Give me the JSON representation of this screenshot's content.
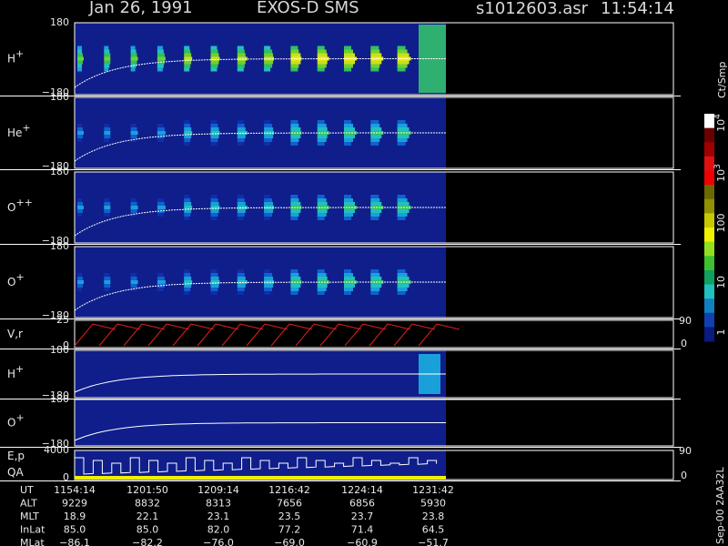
{
  "header": {
    "date": "Jan 26, 1991",
    "instrument": "EXOS-D SMS",
    "file": "s1012603.asr",
    "time": "11:54:14"
  },
  "panels": [
    {
      "label": "H",
      "sup": "+",
      "ticks": [
        "180",
        "−180"
      ]
    },
    {
      "label": "He",
      "sup": "+",
      "ticks": [
        "180",
        "−180"
      ]
    },
    {
      "label": "O",
      "sup": "++",
      "ticks": [
        "180",
        "−180"
      ]
    },
    {
      "label": "O",
      "sup": "+",
      "ticks": [
        "180",
        "−180"
      ]
    },
    {
      "label": "V,r",
      "ticks": [
        "25",
        "0"
      ],
      "right_ticks": [
        "90",
        "0"
      ]
    },
    {
      "label": "H",
      "sup": "+",
      "ticks": [
        "180",
        "−180"
      ]
    },
    {
      "label": "O",
      "sup": "+",
      "ticks": [
        "180",
        "−180"
      ]
    },
    {
      "label": "E,p",
      "label2": "QA",
      "ticks": [
        "4000",
        "0"
      ],
      "right_ticks": [
        "90",
        "0"
      ]
    }
  ],
  "colorbar": {
    "unit": "Ct/Smp",
    "ticks": [
      {
        "base": "10",
        "exp": "4"
      },
      {
        "base": "10",
        "exp": "3"
      },
      {
        "base": "100"
      },
      {
        "base": "10"
      },
      {
        "base": "1"
      }
    ]
  },
  "footer": {
    "rows": [
      [
        "UT",
        "1154:14",
        "1201:50",
        "1209:14",
        "1216:42",
        "1224:14",
        "1231:42"
      ],
      [
        "ALT",
        "9229",
        "8832",
        "8313",
        "7656",
        "6856",
        "5930"
      ],
      [
        "MLT",
        "18.9",
        "22.1",
        "23.1",
        "23.5",
        "23.7",
        "23.8"
      ],
      [
        "InLat",
        "85.0",
        "85.0",
        "82.0",
        "77.2",
        "71.4",
        "64.5"
      ],
      [
        "MLat",
        "−86.1",
        "−82.2",
        "−76.0",
        "−69.0",
        "−60.9",
        "−51.7"
      ]
    ]
  },
  "side_label": "Sep-00 2AA32L"
}
